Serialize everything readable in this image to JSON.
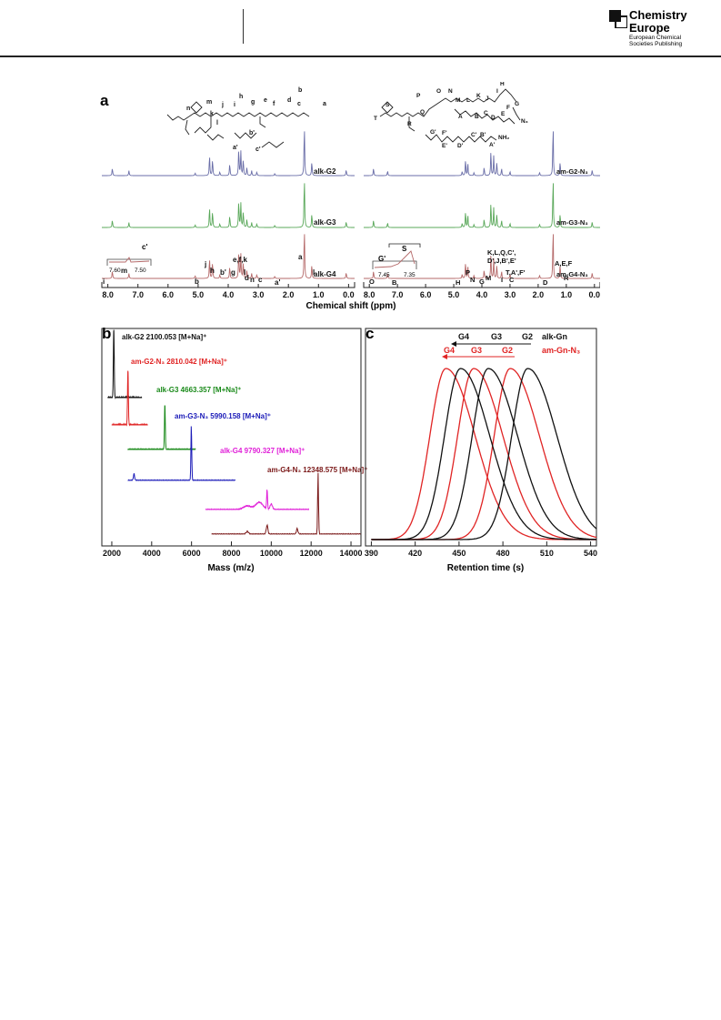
{
  "header": {
    "brand_line1": "Chemistry",
    "brand_line2": "Europe",
    "brand_sub1": "European Chemical",
    "brand_sub2": "Societies Publishing"
  },
  "figure": {
    "panel_a": {
      "letter": "a",
      "xlabel": "Chemical shift (ppm)",
      "xticks": [
        "8.0",
        "7.0",
        "6.0",
        "5.0",
        "4.0",
        "3.0",
        "2.0",
        "1.0",
        "0.0"
      ],
      "left_labels": [
        "alk-G2",
        "alk-G3",
        "alk-G4"
      ],
      "right_labels": [
        "am-G2-N₃",
        "am-G3-N₃",
        "am-G4-N₃"
      ],
      "colors": [
        "#6a6ea8",
        "#5aa85a",
        "#b56a6a"
      ],
      "left_inset": {
        "label": "c'",
        "ticks": [
          "7.60",
          "7.50"
        ]
      },
      "right_inset": {
        "label": "G'",
        "bracket": "S",
        "ticks": [
          "7.45",
          "7.35"
        ]
      },
      "left_peaks": [
        "i",
        "m",
        "b",
        "j",
        "h",
        "b'",
        "g",
        "e,f,k",
        "l",
        "d",
        "n",
        "c",
        "a'",
        "a",
        "l"
      ],
      "right_peaks": [
        "O",
        "B",
        "H",
        "P",
        "N",
        "G",
        "M",
        "K,L,Q,C',",
        "D',J,B',E'",
        "T,A',F'",
        "I",
        "C",
        "D",
        "A,E,F",
        "R"
      ],
      "left_structure_labels": [
        "m",
        "n",
        "j",
        "k",
        "l",
        "h",
        "i",
        "g",
        "e",
        "f",
        "d",
        "c",
        "b",
        "a",
        "b'",
        "a'",
        "c'"
      ],
      "right_structure_labels": [
        "S",
        "T",
        "P",
        "O",
        "R",
        "Q",
        "N",
        "M",
        "L",
        "K",
        "J",
        "I",
        "H",
        "G",
        "F",
        "E",
        "D",
        "C",
        "B",
        "A",
        "G'",
        "F'",
        "E'",
        "D'",
        "C'",
        "B'",
        "A'",
        "NH₂",
        "N₃"
      ]
    },
    "panel_b": {
      "letter": "b",
      "xlabel": "Mass (m/z)",
      "xticks": [
        "2000",
        "4000",
        "6000",
        "8000",
        "10000",
        "12000",
        "14000"
      ],
      "spectra": [
        {
          "label": "alk-G2 2100.053 [M+Na]⁺",
          "color": "#111111"
        },
        {
          "label": "am-G2-N₃ 2810.042 [M+Na]⁺",
          "color": "#e02424"
        },
        {
          "label": "alk-G3 4663.357 [M+Na]⁺",
          "color": "#1a8a1a"
        },
        {
          "label": "am-G3-N₃ 5990.158 [M+Na]⁺",
          "color": "#1a1ab8"
        },
        {
          "label": "alk-G4 9790.327 [M+Na]⁺",
          "color": "#e020d8"
        },
        {
          "label": "am-G4-N₃ 12348.575 [M+Na]⁺",
          "color": "#7a1818"
        }
      ]
    },
    "panel_c": {
      "letter": "c",
      "xlabel": "Retention time (s)",
      "xticks": [
        "390",
        "420",
        "450",
        "480",
        "510",
        "540"
      ],
      "black_labels": [
        "G4",
        "G3",
        "G2"
      ],
      "black_series": "alk-Gn",
      "red_labels": [
        "G4",
        "G3",
        "G2"
      ],
      "red_series": "am-Gn-N₃"
    }
  }
}
